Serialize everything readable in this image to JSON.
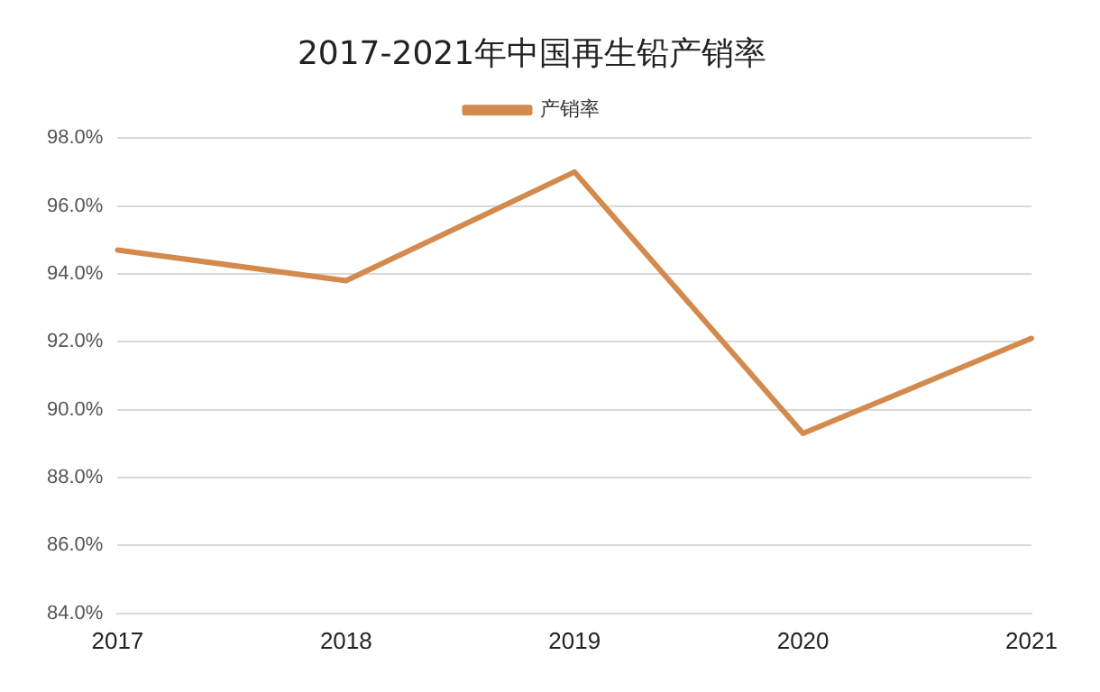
{
  "chart_data": {
    "type": "line",
    "title": "2017-2021年中国再生铅产销率",
    "categories": [
      "2017",
      "2018",
      "2019",
      "2020",
      "2021"
    ],
    "series": [
      {
        "name": "产销率",
        "color": "#d38a4c",
        "values": [
          94.7,
          93.8,
          97.0,
          89.3,
          92.1
        ]
      }
    ],
    "ylim": [
      84,
      98
    ],
    "yticks": [
      {
        "value": 84,
        "label": "84.0%"
      },
      {
        "value": 86,
        "label": "86.0%"
      },
      {
        "value": 88,
        "label": "88.0%"
      },
      {
        "value": 90,
        "label": "90.0%"
      },
      {
        "value": 92,
        "label": "92.0%"
      },
      {
        "value": 94,
        "label": "94.0%"
      },
      {
        "value": 96,
        "label": "96.0%"
      },
      {
        "value": 98,
        "label": "98.0%"
      }
    ],
    "grid": "y",
    "legend": "top",
    "marker": "none",
    "line_style": "solid"
  }
}
